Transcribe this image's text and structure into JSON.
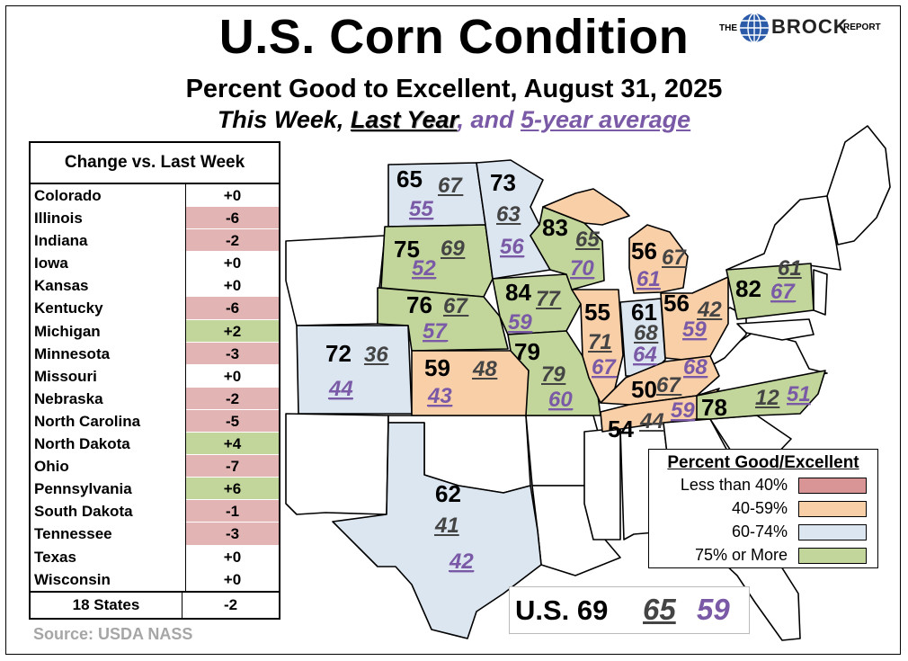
{
  "title": "U.S. Corn Condition",
  "subtitle": "Percent Good to Excellent, August 31, 2025",
  "legend_line": {
    "this_week": "This Week",
    "comma": ",",
    "last_year": "Last Year",
    "and": ", and ",
    "avg": "5-year average"
  },
  "brand": {
    "the": "THE",
    "name": "BROCK",
    "report": "REPORT"
  },
  "change_table": {
    "header": "Change vs. Last Week",
    "rows": [
      {
        "state": "Colorado",
        "change": "+0",
        "status": "zero"
      },
      {
        "state": "Illinois",
        "change": "-6",
        "status": "neg"
      },
      {
        "state": "Indiana",
        "change": "-2",
        "status": "neg"
      },
      {
        "state": "Iowa",
        "change": "+0",
        "status": "zero"
      },
      {
        "state": "Kansas",
        "change": "+0",
        "status": "zero"
      },
      {
        "state": "Kentucky",
        "change": "-6",
        "status": "neg"
      },
      {
        "state": "Michigan",
        "change": "+2",
        "status": "pos"
      },
      {
        "state": "Minnesota",
        "change": "-3",
        "status": "neg"
      },
      {
        "state": "Missouri",
        "change": "+0",
        "status": "zero"
      },
      {
        "state": "Nebraska",
        "change": "-2",
        "status": "neg"
      },
      {
        "state": "North Carolina",
        "change": "-5",
        "status": "neg"
      },
      {
        "state": "North Dakota",
        "change": "+4",
        "status": "pos"
      },
      {
        "state": "Ohio",
        "change": "-7",
        "status": "neg"
      },
      {
        "state": "Pennsylvania",
        "change": "+6",
        "status": "pos"
      },
      {
        "state": "South Dakota",
        "change": "-1",
        "status": "neg"
      },
      {
        "state": "Tennessee",
        "change": "-3",
        "status": "neg"
      },
      {
        "state": "Texas",
        "change": "+0",
        "status": "zero"
      },
      {
        "state": "Wisconsin",
        "change": "+0",
        "status": "zero"
      }
    ],
    "footer": {
      "label": "18 States",
      "change": "-2"
    }
  },
  "source": "Source: USDA NASS",
  "colors": {
    "less_than_40": "#d99595",
    "40_59": "#f9cfa8",
    "60_74": "#dce6f1",
    "75_plus": "#c2d69b",
    "avg_purple": "#7a5aa6"
  },
  "states": [
    {
      "name": "North Dakota",
      "this_week": "65",
      "last_year": "67",
      "avg": "55",
      "band": "60_74"
    },
    {
      "name": "South Dakota",
      "this_week": "75",
      "last_year": "69",
      "avg": "52",
      "band": "75_plus"
    },
    {
      "name": "Nebraska",
      "this_week": "76",
      "last_year": "67",
      "avg": "57",
      "band": "75_plus"
    },
    {
      "name": "Colorado",
      "this_week": "72",
      "last_year": "36",
      "avg": "44",
      "band": "60_74"
    },
    {
      "name": "Kansas",
      "this_week": "59",
      "last_year": "48",
      "avg": "43",
      "band": "40_59"
    },
    {
      "name": "Texas",
      "this_week": "62",
      "last_year": "41",
      "avg": "42",
      "band": "60_74"
    },
    {
      "name": "Minnesota",
      "this_week": "73",
      "last_year": "63",
      "avg": "56",
      "band": "60_74"
    },
    {
      "name": "Iowa",
      "this_week": "84",
      "last_year": "77",
      "avg": "59",
      "band": "75_plus"
    },
    {
      "name": "Missouri",
      "this_week": "79",
      "last_year": "79",
      "avg": "60",
      "band": "75_plus"
    },
    {
      "name": "Wisconsin",
      "this_week": "83",
      "last_year": "65",
      "avg": "70",
      "band": "75_plus"
    },
    {
      "name": "Illinois",
      "this_week": "55",
      "last_year": "71",
      "avg": "67",
      "band": "40_59"
    },
    {
      "name": "Indiana",
      "this_week": "61",
      "last_year": "68",
      "avg": "64",
      "band": "60_74"
    },
    {
      "name": "Michigan",
      "this_week": "56",
      "last_year": "67",
      "avg": "61",
      "band": "40_59"
    },
    {
      "name": "Ohio",
      "this_week": "56",
      "last_year": "42",
      "avg": "59",
      "band": "40_59"
    },
    {
      "name": "Kentucky",
      "this_week": "50",
      "last_year": "67",
      "avg": "68",
      "band": "40_59"
    },
    {
      "name": "Tennessee",
      "this_week": "54",
      "last_year": "44",
      "avg": "59",
      "band": "40_59"
    },
    {
      "name": "North Carolina",
      "this_week": "78",
      "last_year": "12",
      "avg": "51",
      "band": "75_plus"
    },
    {
      "name": "Pennsylvania",
      "this_week": "82",
      "last_year": "61",
      "avg": "67",
      "band": "75_plus"
    }
  ],
  "color_key": {
    "title": "Percent Good/Excellent",
    "items": [
      {
        "label": "Less than 40%",
        "band": "less_than_40"
      },
      {
        "label": "40-59%",
        "band": "40_59"
      },
      {
        "label": "60-74%",
        "band": "60_74"
      },
      {
        "label": "75% or More",
        "band": "75_plus"
      }
    ]
  },
  "us_total": {
    "label": "U.S. 69",
    "last_year": "65",
    "avg": "59"
  }
}
